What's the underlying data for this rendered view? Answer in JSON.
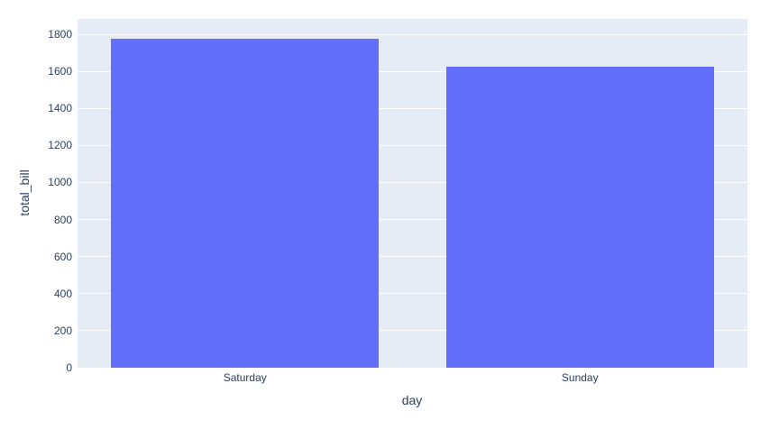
{
  "chart_data": {
    "type": "bar",
    "categories": [
      "Saturday",
      "Sunday"
    ],
    "values": [
      1778.4,
      1627.16
    ],
    "title": "",
    "xlabel": "day",
    "ylabel": "total_bill",
    "ylim": [
      0,
      1883
    ],
    "yticks": [
      0,
      200,
      400,
      600,
      800,
      1000,
      1200,
      1400,
      1600,
      1800
    ],
    "grid": true,
    "legend": "none",
    "bargap": 0.2,
    "colors": {
      "bar": "#636efa",
      "plot_background": "#e5ecf6",
      "gridline": "#ffffff",
      "text": "#2a3f5f",
      "page_background": "#ffffff"
    }
  }
}
